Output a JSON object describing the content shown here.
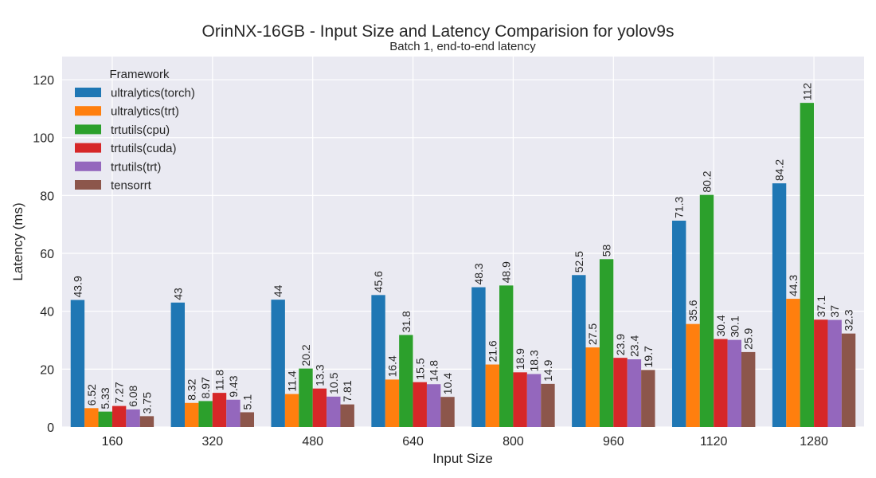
{
  "chart_data": {
    "type": "bar",
    "title": "OrinNX-16GB - Input Size and Latency Comparision for yolov9s",
    "subtitle": "Batch 1, end-to-end latency",
    "xlabel": "Input Size",
    "ylabel": "Latency (ms)",
    "ylim": [
      0,
      128
    ],
    "yticks": [
      0,
      20,
      40,
      60,
      80,
      100,
      120
    ],
    "grid": true,
    "legend_title": "Framework",
    "legend_placement": "top-left",
    "categories": [
      "160",
      "320",
      "480",
      "640",
      "800",
      "960",
      "1120",
      "1280"
    ],
    "series": [
      {
        "name": "ultralytics(torch)",
        "color": "#1f77b4",
        "values": [
          43.9,
          43,
          44,
          45.6,
          48.3,
          52.5,
          71.3,
          84.2
        ]
      },
      {
        "name": "ultralytics(trt)",
        "color": "#ff7f0e",
        "values": [
          6.52,
          8.32,
          11.4,
          16.4,
          21.6,
          27.5,
          35.6,
          44.3
        ]
      },
      {
        "name": "trtutils(cpu)",
        "color": "#2ca02c",
        "values": [
          5.33,
          8.97,
          20.2,
          31.8,
          48.9,
          58,
          80.2,
          112
        ]
      },
      {
        "name": "trtutils(cuda)",
        "color": "#d62728",
        "values": [
          7.27,
          11.8,
          13.3,
          15.5,
          18.9,
          23.9,
          30.4,
          37.1
        ]
      },
      {
        "name": "trtutils(trt)",
        "color": "#9467bd",
        "values": [
          6.08,
          9.43,
          10.5,
          14.8,
          18.3,
          23.4,
          30.1,
          37
        ]
      },
      {
        "name": "tensorrt",
        "color": "#8c564b",
        "values": [
          3.75,
          5.1,
          7.81,
          10.4,
          14.9,
          19.7,
          25.9,
          32.3
        ]
      }
    ]
  }
}
